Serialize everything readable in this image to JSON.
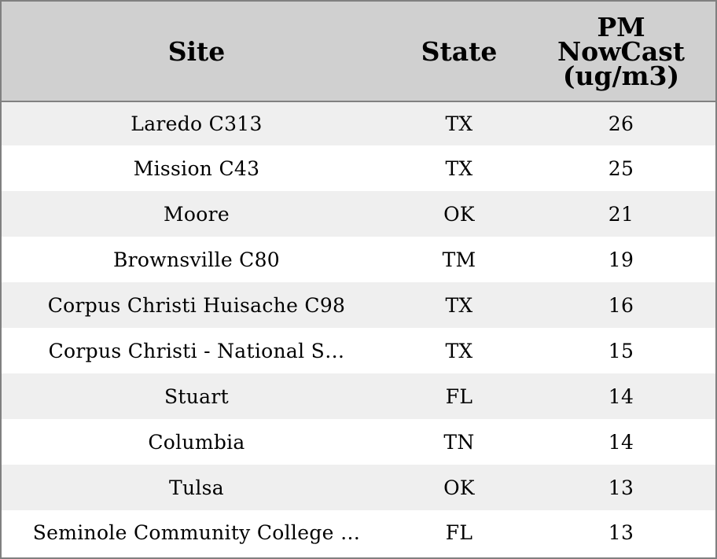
{
  "table": {
    "headers": {
      "site": "Site",
      "state": "State",
      "pm_line1": "PM",
      "pm_line2": "NowCast",
      "pm_line3": "(ug/m3)"
    },
    "rows": [
      {
        "site": "Laredo C313",
        "state": "TX",
        "pm": "26"
      },
      {
        "site": "Mission C43",
        "state": "TX",
        "pm": "25"
      },
      {
        "site": "Moore",
        "state": "OK",
        "pm": "21"
      },
      {
        "site": "Brownsville C80",
        "state": "TM",
        "pm": "19"
      },
      {
        "site": "Corpus Christi Huisache C98",
        "state": "TX",
        "pm": "16"
      },
      {
        "site": "Corpus Christi - National S…",
        "state": "TX",
        "pm": "15"
      },
      {
        "site": "Stuart",
        "state": "FL",
        "pm": "14"
      },
      {
        "site": "Columbia",
        "state": "TN",
        "pm": "14"
      },
      {
        "site": "Tulsa",
        "state": "OK",
        "pm": "13"
      },
      {
        "site": "Seminole Community College …",
        "state": "FL",
        "pm": "13"
      }
    ],
    "colors": {
      "header_bg": "#d0d0d0",
      "row_alt_bg": "#efefef",
      "row_bg": "#ffffff",
      "border": "#808080"
    }
  }
}
